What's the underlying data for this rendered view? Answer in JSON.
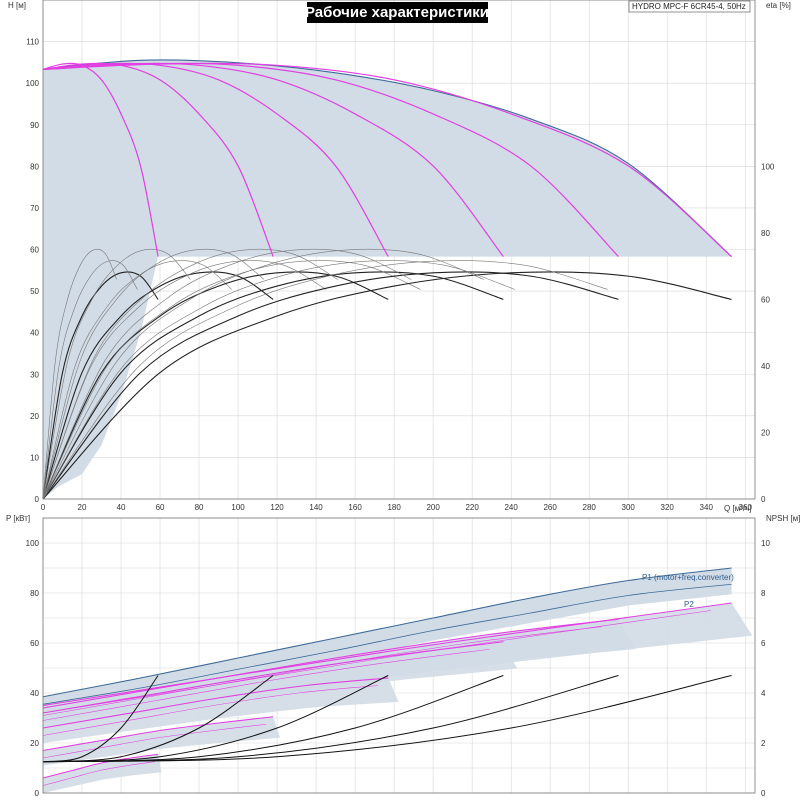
{
  "title": "Рабочие характеристики",
  "model": "HYDRO MPC-F 6CR45-4, 50Hz",
  "colors": {
    "envelope_fill": "#d2dce6",
    "envelope_edge": "#3d6a99",
    "head_curve": "#e23ee2",
    "eff_curve": "#222222",
    "power_main": "#e23ee2",
    "npsh_curve": "#111111",
    "grid": "#d7d7d7"
  },
  "chart_data": [
    {
      "type": "line",
      "name": "head-efficiency",
      "xlabel": "Q [м³/ч]",
      "ylabel_left": "H [м]",
      "ylabel_right": "eta [%]",
      "xlim": [
        0,
        365
      ],
      "x_ticks": [
        0,
        20,
        40,
        60,
        80,
        100,
        120,
        140,
        160,
        180,
        200,
        220,
        240,
        260,
        280,
        300,
        320,
        340,
        360
      ],
      "ylim_left": [
        0,
        120
      ],
      "y_ticks_left": [
        0,
        10,
        20,
        30,
        40,
        50,
        60,
        70,
        80,
        90,
        100,
        110
      ],
      "ylim_right": [
        0,
        150
      ],
      "y_ticks_right": [
        0,
        20,
        40,
        60,
        80,
        100
      ],
      "head_envelope": [
        [
          0,
          103.4
        ],
        [
          50,
          105.5
        ],
        [
          100,
          104.9
        ],
        [
          150,
          102.5
        ],
        [
          200,
          98.2
        ],
        [
          250,
          91.4
        ],
        [
          300,
          80.7
        ],
        [
          353,
          58.3
        ]
      ],
      "head_curves": [
        {
          "pumps": 1,
          "points": [
            [
              0,
              103.3
            ],
            [
              10,
              104.6
            ],
            [
              20,
              104.3
            ],
            [
              30,
              100.8
            ],
            [
              40,
              92.6
            ],
            [
              50,
              80.1
            ],
            [
              59,
              58.3
            ]
          ]
        },
        {
          "pumps": 2,
          "points": [
            [
              0,
              103.3
            ],
            [
              20,
              104.6
            ],
            [
              40,
              104.3
            ],
            [
              60,
              100.8
            ],
            [
              80,
              92.6
            ],
            [
              100,
              80.1
            ],
            [
              118,
              58.3
            ]
          ]
        },
        {
          "pumps": 3,
          "points": [
            [
              0,
              103.3
            ],
            [
              30,
              104.6
            ],
            [
              60,
              104.3
            ],
            [
              90,
              100.8
            ],
            [
              120,
              92.6
            ],
            [
              150,
              80.1
            ],
            [
              177,
              58.3
            ]
          ]
        },
        {
          "pumps": 4,
          "points": [
            [
              0,
              103.3
            ],
            [
              40,
              104.6
            ],
            [
              80,
              104.3
            ],
            [
              120,
              100.8
            ],
            [
              160,
              92.6
            ],
            [
              200,
              80.1
            ],
            [
              236,
              58.3
            ]
          ]
        },
        {
          "pumps": 5,
          "points": [
            [
              0,
              103.3
            ],
            [
              50,
              104.6
            ],
            [
              100,
              104.3
            ],
            [
              150,
              100.8
            ],
            [
              200,
              92.6
            ],
            [
              250,
              80.1
            ],
            [
              295,
              58.3
            ]
          ]
        },
        {
          "pumps": 6,
          "points": [
            [
              0,
              103.3
            ],
            [
              60,
              104.6
            ],
            [
              120,
              104.3
            ],
            [
              180,
              100.8
            ],
            [
              240,
              92.6
            ],
            [
              300,
              80.1
            ],
            [
              353,
              58.3
            ]
          ]
        }
      ],
      "eff_curves": [
        {
          "pumps": 1,
          "points": [
            [
              0,
              0
            ],
            [
              10,
              38
            ],
            [
              20,
              55
            ],
            [
              30,
              64
            ],
            [
              40,
              68
            ],
            [
              50,
              67
            ],
            [
              59,
              60
            ]
          ]
        },
        {
          "pumps": 2,
          "points": [
            [
              0,
              0
            ],
            [
              20,
              38
            ],
            [
              40,
              55
            ],
            [
              60,
              64
            ],
            [
              80,
              68
            ],
            [
              100,
              67
            ],
            [
              118,
              60
            ]
          ]
        },
        {
          "pumps": 3,
          "points": [
            [
              0,
              0
            ],
            [
              30,
              38
            ],
            [
              60,
              55
            ],
            [
              90,
              64
            ],
            [
              120,
              68
            ],
            [
              150,
              67
            ],
            [
              177,
              60
            ]
          ]
        },
        {
          "pumps": 4,
          "points": [
            [
              0,
              0
            ],
            [
              40,
              38
            ],
            [
              80,
              55
            ],
            [
              120,
              64
            ],
            [
              160,
              68
            ],
            [
              200,
              67
            ],
            [
              236,
              60
            ]
          ]
        },
        {
          "pumps": 5,
          "points": [
            [
              0,
              0
            ],
            [
              50,
              38
            ],
            [
              100,
              55
            ],
            [
              150,
              64
            ],
            [
              200,
              68
            ],
            [
              250,
              67
            ],
            [
              295,
              60
            ]
          ]
        },
        {
          "pumps": 6,
          "points": [
            [
              0,
              0
            ],
            [
              60,
              38
            ],
            [
              120,
              55
            ],
            [
              180,
              64
            ],
            [
              240,
              68
            ],
            [
              300,
              67
            ],
            [
              353,
              60
            ]
          ]
        }
      ]
    },
    {
      "type": "line",
      "name": "power-npsh",
      "xlabel": "Q [м³/ч]",
      "ylabel_left": "P [кВт]",
      "ylabel_right": "NPSH [м]",
      "xlim": [
        0,
        365
      ],
      "ylim_left": [
        0,
        110
      ],
      "y_ticks_left": [
        0,
        20,
        40,
        60,
        80,
        100
      ],
      "ylim_right": [
        0,
        11
      ],
      "y_ticks_right": [
        0,
        2,
        4,
        6,
        8,
        10
      ],
      "series": [
        {
          "name": "P1 (motor+freq.converter)",
          "points": [
            [
              0,
              38.5
            ],
            [
              50,
              46
            ],
            [
              100,
              54
            ],
            [
              150,
              62
            ],
            [
              200,
              70
            ],
            [
              250,
              78
            ],
            [
              300,
              85
            ],
            [
              353,
              90
            ]
          ]
        },
        {
          "name": "P2",
          "points": [
            [
              0,
              35.5
            ],
            [
              50,
              42
            ],
            [
              100,
              49.5
            ],
            [
              150,
              57
            ],
            [
              200,
              65
            ],
            [
              250,
              72
            ],
            [
              300,
              79
            ],
            [
              353,
              83.5
            ]
          ]
        }
      ],
      "power_curves": [
        {
          "pumps": 1,
          "points": [
            [
              0,
              6
            ],
            [
              15,
              9
            ],
            [
              30,
              12
            ],
            [
              45,
              14
            ],
            [
              59,
              15.5
            ]
          ]
        },
        {
          "pumps": 2,
          "points": [
            [
              0,
              17
            ],
            [
              30,
              21
            ],
            [
              60,
              25
            ],
            [
              90,
              28
            ],
            [
              118,
              30.5
            ]
          ]
        },
        {
          "pumps": 3,
          "points": [
            [
              0,
              26
            ],
            [
              45,
              32
            ],
            [
              90,
              38
            ],
            [
              135,
              43
            ],
            [
              177,
              46
            ]
          ]
        },
        {
          "pumps": 4,
          "points": [
            [
              0,
              32
            ],
            [
              60,
              40
            ],
            [
              120,
              48
            ],
            [
              180,
              55
            ],
            [
              236,
              60.5
            ]
          ]
        },
        {
          "pumps": 5,
          "points": [
            [
              0,
              34
            ],
            [
              75,
              44
            ],
            [
              150,
              54
            ],
            [
              225,
              63
            ],
            [
              295,
              69.5
            ]
          ]
        },
        {
          "pumps": 6,
          "points": [
            [
              0,
              35
            ],
            [
              90,
              46
            ],
            [
              180,
              57
            ],
            [
              270,
              67
            ],
            [
              353,
              76
            ]
          ]
        }
      ],
      "npsh_curves": [
        {
          "pumps": 1,
          "points": [
            [
              0,
              1.25
            ],
            [
              20,
              1.45
            ],
            [
              40,
              2.6
            ],
            [
              59,
              4.7
            ]
          ]
        },
        {
          "pumps": 2,
          "points": [
            [
              0,
              1.25
            ],
            [
              40,
              1.45
            ],
            [
              80,
              2.6
            ],
            [
              118,
              4.7
            ]
          ]
        },
        {
          "pumps": 3,
          "points": [
            [
              0,
              1.25
            ],
            [
              60,
              1.45
            ],
            [
              120,
              2.6
            ],
            [
              177,
              4.7
            ]
          ]
        },
        {
          "pumps": 4,
          "points": [
            [
              0,
              1.25
            ],
            [
              80,
              1.45
            ],
            [
              160,
              2.6
            ],
            [
              236,
              4.7
            ]
          ]
        },
        {
          "pumps": 5,
          "points": [
            [
              0,
              1.25
            ],
            [
              100,
              1.45
            ],
            [
              200,
              2.6
            ],
            [
              295,
              4.7
            ]
          ]
        },
        {
          "pumps": 6,
          "points": [
            [
              0,
              1.25
            ],
            [
              120,
              1.45
            ],
            [
              240,
              2.6
            ],
            [
              353,
              4.7
            ]
          ]
        }
      ]
    }
  ]
}
